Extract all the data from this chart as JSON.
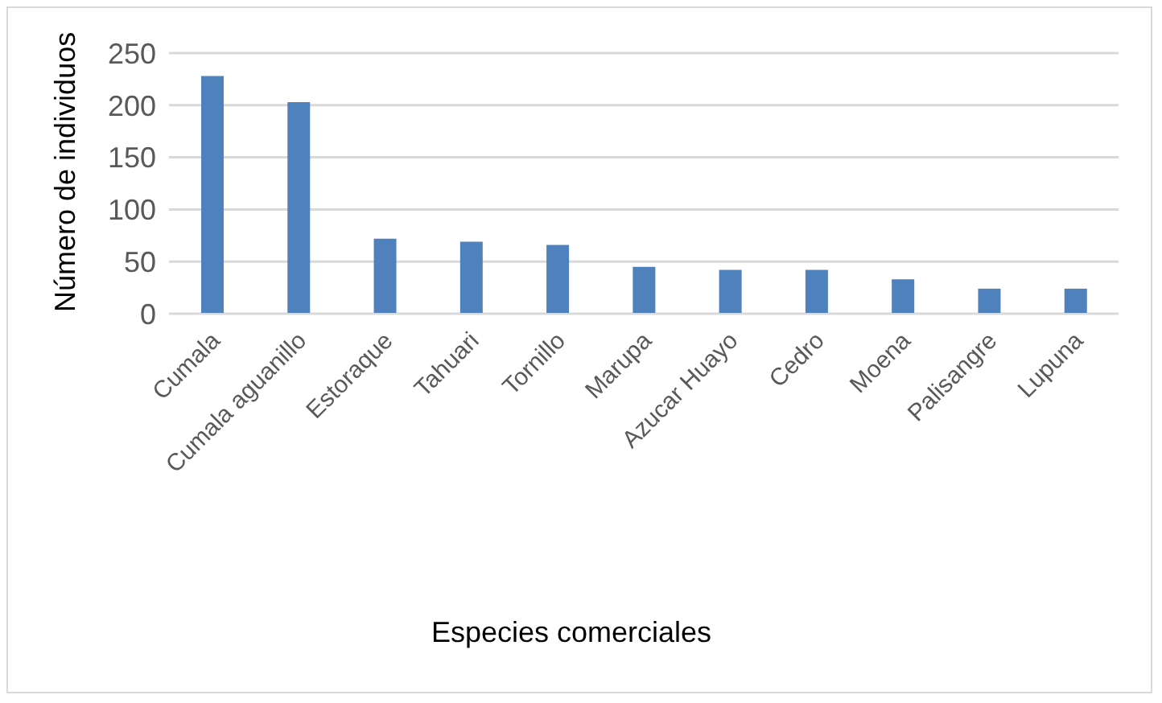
{
  "chart_data": {
    "type": "bar",
    "xlabel": "Especies comerciales",
    "ylabel": "Número de individuos",
    "categories": [
      "Cumala",
      "Cumala aguanillo",
      "Estoraque",
      "Tahuari",
      "Tornillo",
      "Marupa",
      "Azucar Huayo",
      "Cedro",
      "Moena",
      "Palisangre",
      "Lupuna"
    ],
    "values": [
      228,
      203,
      72,
      69,
      66,
      45,
      42,
      42,
      33,
      24,
      24
    ],
    "color": "#4f81bd",
    "ylim": [
      0,
      250
    ],
    "yticks": [
      0,
      50,
      100,
      150,
      200,
      250
    ],
    "grid": "y"
  }
}
